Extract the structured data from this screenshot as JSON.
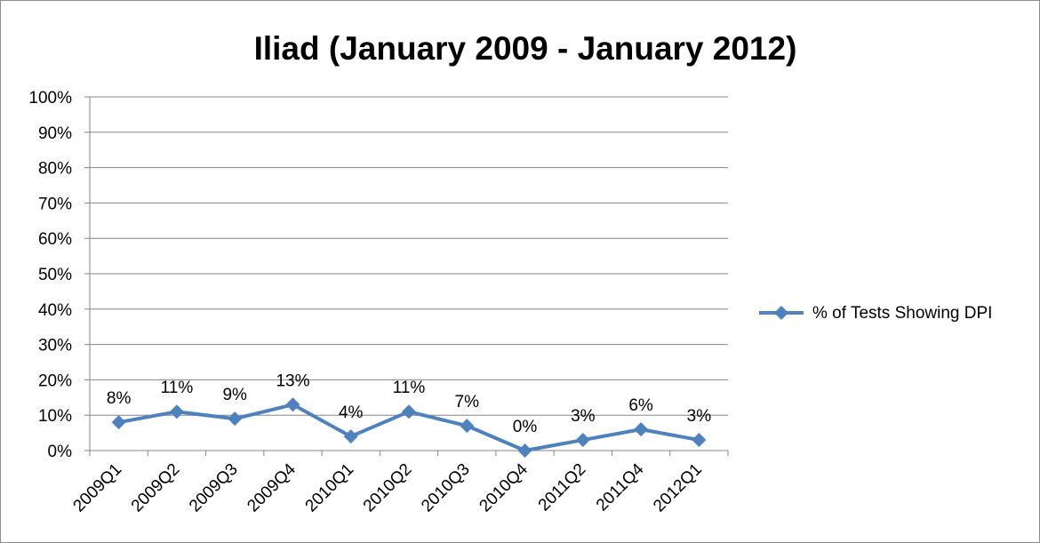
{
  "chart_data": {
    "type": "line",
    "title": "Iliad (January 2009 - January 2012)",
    "xlabel": "",
    "ylabel": "",
    "categories": [
      "2009Q1",
      "2009Q2",
      "2009Q3",
      "2009Q4",
      "2010Q1",
      "2010Q2",
      "2010Q3",
      "2010Q4",
      "2011Q2",
      "2011Q4",
      "2012Q1"
    ],
    "series": [
      {
        "name": "% of Tests Showing DPI",
        "values": [
          8,
          11,
          9,
          13,
          4,
          11,
          7,
          0,
          3,
          6,
          3
        ],
        "data_labels": [
          "8%",
          "11%",
          "9%",
          "13%",
          "4%",
          "11%",
          "7%",
          "0%",
          "3%",
          "6%",
          "3%"
        ],
        "color": "#4f81bd",
        "marker": "diamond"
      }
    ],
    "ylim": [
      0,
      100
    ],
    "yticks": [
      0,
      10,
      20,
      30,
      40,
      50,
      60,
      70,
      80,
      90,
      100
    ],
    "ytick_labels": [
      "0%",
      "10%",
      "20%",
      "30%",
      "40%",
      "50%",
      "60%",
      "70%",
      "80%",
      "90%",
      "100%"
    ],
    "grid": true,
    "legend_position": "right",
    "colors": {
      "gridline": "#868686",
      "axis": "#868686",
      "line": "#4f81bd"
    }
  }
}
